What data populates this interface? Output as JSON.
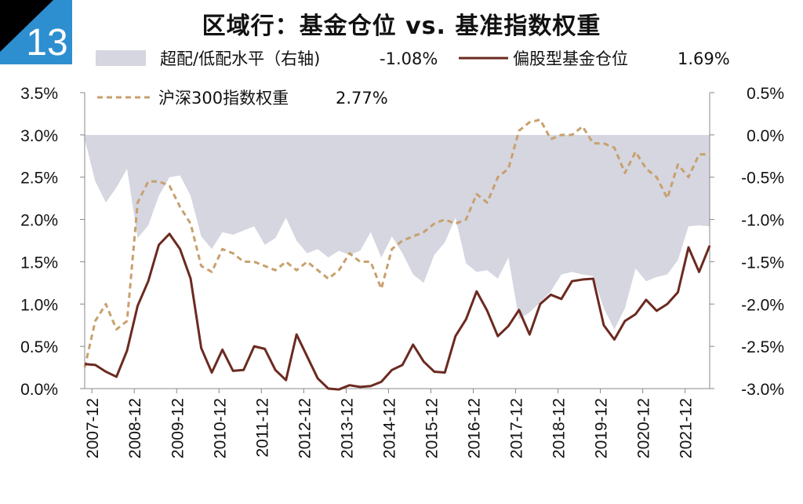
{
  "badge": {
    "number": "13",
    "bg_color": "#2e8fd0",
    "corner_color": "#000000"
  },
  "chart_data": {
    "type": "area+line",
    "title": "区域行：基金仓位 vs. 基准指数权重",
    "legend": [
      {
        "key": "over",
        "label": "超配/低配水平（右轴)",
        "value": "-1.08%",
        "color": "#d5d6e0",
        "style": "area"
      },
      {
        "key": "fund",
        "label": "偏股型基金仓位",
        "value": "1.69%",
        "color": "#6b2a20",
        "style": "solid"
      },
      {
        "key": "hs300",
        "label": "沪深300指数权重",
        "value": "2.77%",
        "color": "#c8a06e",
        "style": "dashed"
      }
    ],
    "x_tick_labels": [
      "2007-12",
      "2008-12",
      "2009-12",
      "2010-12",
      "2011-12",
      "2012-12",
      "2013-12",
      "2014-12",
      "2015-12",
      "2016-12",
      "2017-12",
      "2018-12",
      "2019-12",
      "2020-12",
      "2021-12"
    ],
    "y_left": {
      "ticks": [
        "0.0%",
        "0.5%",
        "1.0%",
        "1.5%",
        "2.0%",
        "2.5%",
        "3.0%",
        "3.5%"
      ],
      "range": [
        0,
        3.5
      ]
    },
    "y_right": {
      "ticks": [
        "-3.0%",
        "-2.5%",
        "-2.0%",
        "-1.5%",
        "-1.0%",
        "-0.5%",
        "0.0%",
        "0.5%"
      ],
      "range": [
        -3.0,
        0.5
      ]
    },
    "x_range": [
      2007.75,
      2022.5
    ],
    "series": {
      "over": {
        "axis": "right",
        "x": [
          2007.75,
          2008.0,
          2008.25,
          2008.5,
          2008.75,
          2009.0,
          2009.25,
          2009.5,
          2009.75,
          2010.0,
          2010.25,
          2010.5,
          2010.75,
          2011.0,
          2011.25,
          2011.5,
          2011.75,
          2012.0,
          2012.25,
          2012.5,
          2012.75,
          2013.0,
          2013.25,
          2013.5,
          2013.75,
          2014.0,
          2014.25,
          2014.5,
          2014.75,
          2015.0,
          2015.25,
          2015.5,
          2015.75,
          2016.0,
          2016.25,
          2016.5,
          2016.75,
          2017.0,
          2017.25,
          2017.5,
          2017.75,
          2018.0,
          2018.25,
          2018.5,
          2018.75,
          2019.0,
          2019.25,
          2019.5,
          2019.75,
          2020.0,
          2020.25,
          2020.5,
          2020.75,
          2021.0,
          2021.25,
          2021.5,
          2021.75,
          2022.0,
          2022.25,
          2022.5
        ],
        "values": [
          -0.05,
          -0.55,
          -0.8,
          -0.62,
          -0.4,
          -1.22,
          -1.07,
          -0.72,
          -0.5,
          -0.48,
          -0.72,
          -1.2,
          -1.35,
          -1.15,
          -1.18,
          -1.13,
          -1.08,
          -1.3,
          -1.22,
          -0.98,
          -1.25,
          -1.4,
          -1.35,
          -1.45,
          -1.37,
          -1.42,
          -1.37,
          -1.15,
          -1.45,
          -1.2,
          -1.4,
          -1.65,
          -1.75,
          -1.42,
          -1.27,
          -0.98,
          -1.52,
          -1.62,
          -1.6,
          -1.7,
          -1.45,
          -2.18,
          -2.1,
          -1.98,
          -1.85,
          -1.65,
          -1.62,
          -1.65,
          -1.67,
          -2.05,
          -2.3,
          -2.05,
          -1.58,
          -1.73,
          -1.68,
          -1.65,
          -1.48,
          -1.08,
          -1.07,
          -1.08
        ]
      },
      "fund": {
        "axis": "left",
        "x": [
          2007.75,
          2008.0,
          2008.25,
          2008.5,
          2008.75,
          2009.0,
          2009.25,
          2009.5,
          2009.75,
          2010.0,
          2010.25,
          2010.5,
          2010.75,
          2011.0,
          2011.25,
          2011.5,
          2011.75,
          2012.0,
          2012.25,
          2012.5,
          2012.75,
          2013.0,
          2013.25,
          2013.5,
          2013.75,
          2014.0,
          2014.25,
          2014.5,
          2014.75,
          2015.0,
          2015.25,
          2015.5,
          2015.75,
          2016.0,
          2016.25,
          2016.5,
          2016.75,
          2017.0,
          2017.25,
          2017.5,
          2017.75,
          2018.0,
          2018.25,
          2018.5,
          2018.75,
          2019.0,
          2019.25,
          2019.5,
          2019.75,
          2020.0,
          2020.25,
          2020.5,
          2020.75,
          2021.0,
          2021.25,
          2021.5,
          2021.75,
          2022.0,
          2022.25,
          2022.5
        ],
        "values": [
          0.29,
          0.28,
          0.2,
          0.14,
          0.45,
          0.98,
          1.27,
          1.7,
          1.83,
          1.65,
          1.3,
          0.48,
          0.19,
          0.46,
          0.21,
          0.22,
          0.5,
          0.47,
          0.22,
          0.1,
          0.64,
          0.38,
          0.12,
          0.0,
          -0.01,
          0.04,
          0.02,
          0.03,
          0.08,
          0.22,
          0.28,
          0.52,
          0.32,
          0.2,
          0.19,
          0.62,
          0.82,
          1.15,
          0.92,
          0.62,
          0.74,
          0.93,
          0.64,
          1.0,
          1.11,
          1.06,
          1.27,
          1.29,
          1.3,
          0.75,
          0.58,
          0.8,
          0.88,
          1.05,
          0.92,
          1.0,
          1.14,
          1.67,
          1.38,
          1.69
        ]
      },
      "hs300": {
        "axis": "left",
        "x": [
          2007.75,
          2008.0,
          2008.25,
          2008.5,
          2008.75,
          2009.0,
          2009.25,
          2009.5,
          2009.75,
          2010.0,
          2010.25,
          2010.5,
          2010.75,
          2011.0,
          2011.25,
          2011.5,
          2011.75,
          2012.0,
          2012.25,
          2012.5,
          2012.75,
          2013.0,
          2013.25,
          2013.5,
          2013.75,
          2014.0,
          2014.25,
          2014.5,
          2014.75,
          2015.0,
          2015.25,
          2015.5,
          2015.75,
          2016.0,
          2016.25,
          2016.5,
          2016.75,
          2017.0,
          2017.25,
          2017.5,
          2017.75,
          2018.0,
          2018.25,
          2018.5,
          2018.75,
          2019.0,
          2019.25,
          2019.5,
          2019.75,
          2020.0,
          2020.25,
          2020.5,
          2020.75,
          2021.0,
          2021.25,
          2021.5,
          2021.75,
          2022.0,
          2022.25,
          2022.5
        ],
        "values": [
          0.25,
          0.8,
          1.0,
          0.7,
          0.8,
          2.2,
          2.45,
          2.45,
          2.4,
          2.15,
          1.95,
          1.45,
          1.38,
          1.65,
          1.6,
          1.5,
          1.5,
          1.45,
          1.4,
          1.5,
          1.4,
          1.5,
          1.4,
          1.3,
          1.4,
          1.6,
          1.5,
          1.5,
          1.18,
          1.65,
          1.75,
          1.8,
          1.85,
          1.95,
          2.0,
          1.95,
          2.0,
          2.3,
          2.2,
          2.5,
          2.6,
          3.05,
          3.15,
          3.18,
          2.95,
          3.0,
          3.0,
          3.1,
          2.9,
          2.9,
          2.85,
          2.55,
          2.8,
          2.6,
          2.5,
          2.25,
          2.65,
          2.5,
          2.77,
          2.77
        ]
      }
    }
  }
}
